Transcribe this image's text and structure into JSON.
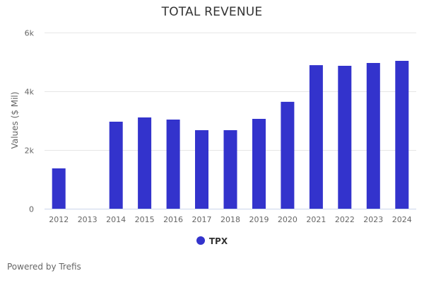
{
  "chart_data": {
    "type": "bar",
    "title": "TOTAL REVENUE",
    "xlabel": "",
    "ylabel": "Values ($ Mil)",
    "ylim": [
      0,
      6000
    ],
    "yticks": [
      0,
      2000,
      4000,
      6000
    ],
    "ytick_labels": [
      "0",
      "2k",
      "4k",
      "6k"
    ],
    "grid": true,
    "legend_position": "bottom-center",
    "categories": [
      "2012",
      "2013",
      "2014",
      "2015",
      "2016",
      "2017",
      "2018",
      "2019",
      "2020",
      "2021",
      "2022",
      "2023",
      "2024"
    ],
    "series": [
      {
        "name": "TPX",
        "color": "#3333cc",
        "values": [
          1373,
          null,
          2964,
          3108,
          3036,
          2675,
          2675,
          3060,
          3640,
          4890,
          4867,
          4964,
          5036
        ]
      }
    ]
  },
  "credits": "Powered by Trefis"
}
